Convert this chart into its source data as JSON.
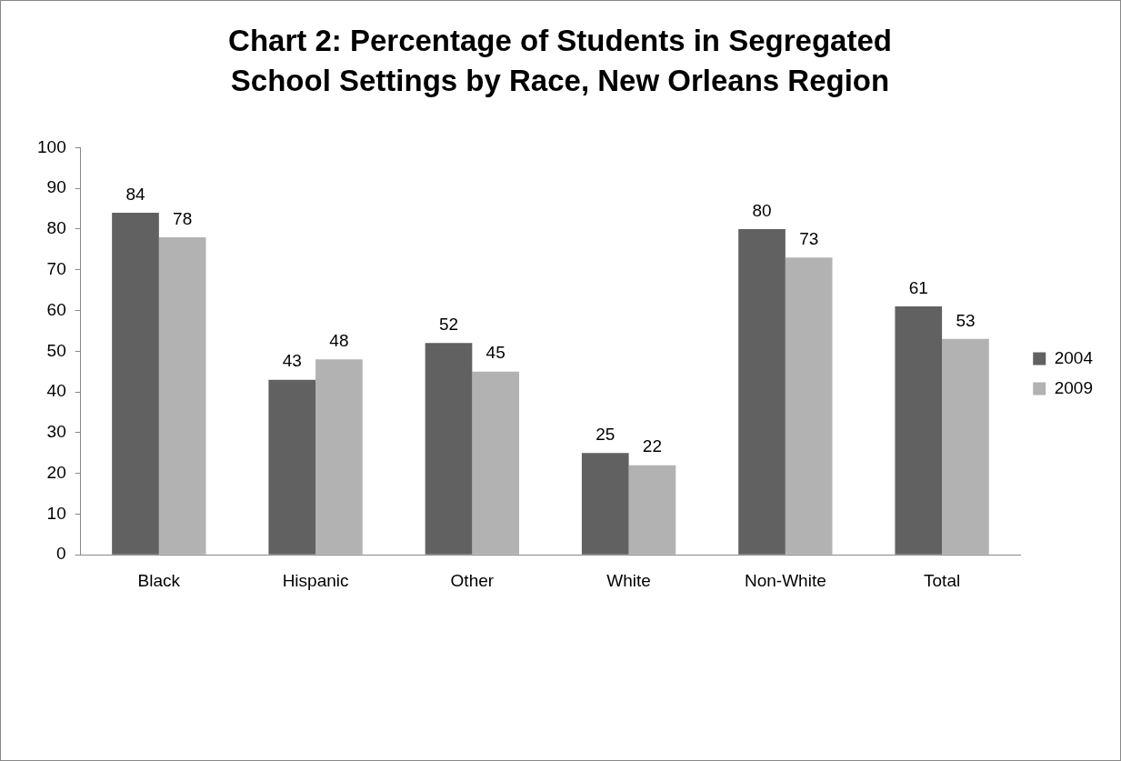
{
  "chart_data": {
    "type": "bar",
    "title": "Chart 2: Percentage of Students in Segregated School Settings by Race, New Orleans Region",
    "categories": [
      "Black",
      "Hispanic",
      "Other",
      "White",
      "Non-White",
      "Total"
    ],
    "series": [
      {
        "name": "2004",
        "color": "#616161",
        "values": [
          84,
          43,
          52,
          25,
          80,
          61
        ]
      },
      {
        "name": "2009",
        "color": "#b2b2b2",
        "values": [
          78,
          48,
          45,
          22,
          73,
          53
        ]
      }
    ],
    "ylim": [
      0,
      100
    ],
    "yticks": [
      0,
      10,
      20,
      30,
      40,
      50,
      60,
      70,
      80,
      90,
      100
    ],
    "grid": false,
    "legend": "right",
    "data_labels": true
  }
}
